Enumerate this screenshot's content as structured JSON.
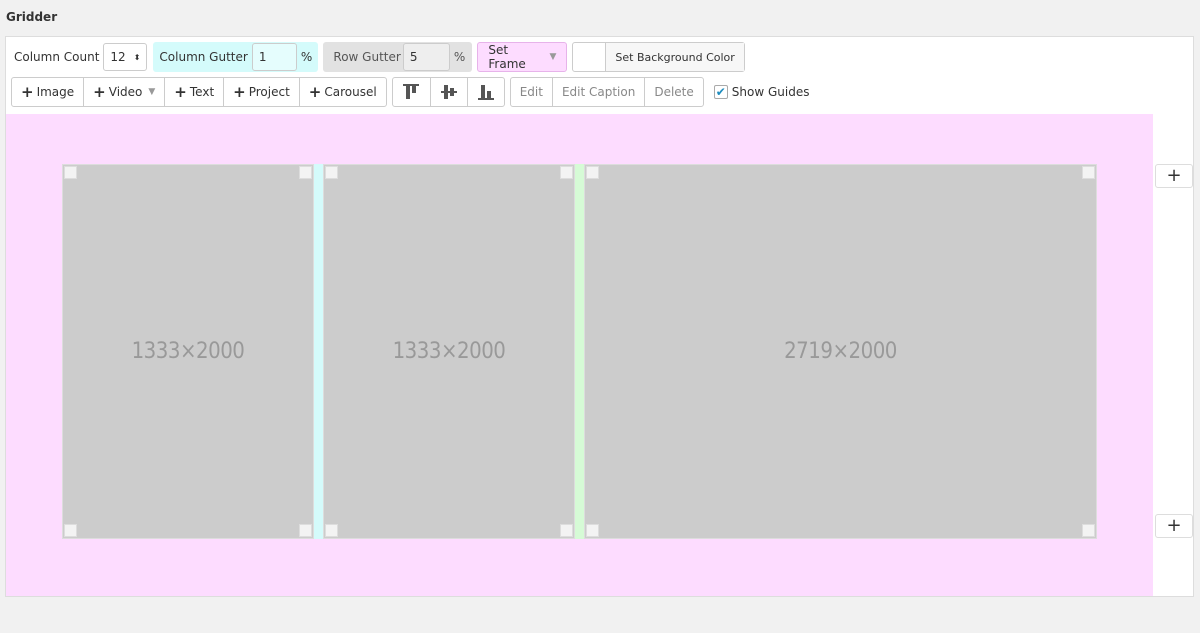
{
  "header": {
    "title": "Gridder"
  },
  "toolbar": {
    "column_count_label": "Column Count",
    "column_count_value": "12",
    "column_gutter_label": "Column Gutter",
    "column_gutter_value": "1",
    "column_gutter_unit": "%",
    "row_gutter_label": "Row Gutter",
    "row_gutter_value": "5",
    "row_gutter_unit": "%",
    "set_frame": "Set Frame",
    "set_bg": "Set Background Color",
    "add": [
      "Image",
      "Video",
      "Text",
      "Project",
      "Carousel"
    ],
    "edit": "Edit",
    "edit_caption": "Edit Caption",
    "delete": "Delete",
    "show_guides": "Show Guides",
    "show_guides_checked": true
  },
  "grid": {
    "cells": [
      {
        "label": "1333×2000"
      },
      {
        "label": "1333×2000"
      },
      {
        "label": "2719×2000"
      }
    ],
    "add_row": "+"
  },
  "colors": {
    "canvas": "#fddcff",
    "column_gutter": "#d4fbfb",
    "row_gutter": "#e2e2e2",
    "frame": "#fddcff",
    "guide_gutter_2": "#d6fbd6",
    "placeholder": "#cccccc"
  }
}
